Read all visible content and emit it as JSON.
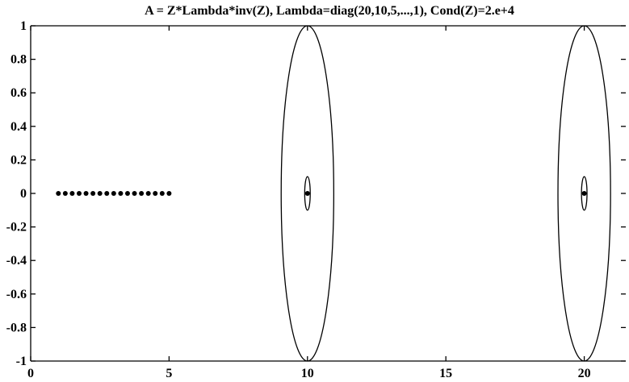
{
  "chart_data": {
    "type": "scatter",
    "title": "A = Z*Lambda*inv(Z), Lambda=diag(20,10,5,...,1), Cond(Z)=2.e+4",
    "xlabel": "",
    "ylabel": "",
    "xlim": [
      0,
      21.5
    ],
    "ylim": [
      -1,
      1
    ],
    "grid": false,
    "x_ticks": [
      {
        "value": 0,
        "label": "0"
      },
      {
        "value": 5,
        "label": "5"
      },
      {
        "value": 10,
        "label": "10"
      },
      {
        "value": 15,
        "label": "15"
      },
      {
        "value": 20,
        "label": "20"
      }
    ],
    "y_ticks": [
      {
        "value": 1,
        "label": "1"
      },
      {
        "value": 0.8,
        "label": "0.8"
      },
      {
        "value": 0.6,
        "label": "0.6"
      },
      {
        "value": 0.4,
        "label": "0.4"
      },
      {
        "value": 0.2,
        "label": "0.2"
      },
      {
        "value": 0,
        "label": "0"
      },
      {
        "value": -0.2,
        "label": "-0.2"
      },
      {
        "value": -0.4,
        "label": "-0.4"
      },
      {
        "value": -0.6,
        "label": "-0.6"
      },
      {
        "value": -0.8,
        "label": "-0.8"
      },
      {
        "value": -1,
        "label": "-1"
      }
    ],
    "points": [
      {
        "x": 1.0,
        "y": 0
      },
      {
        "x": 1.25,
        "y": 0
      },
      {
        "x": 1.5,
        "y": 0
      },
      {
        "x": 1.75,
        "y": 0
      },
      {
        "x": 2.0,
        "y": 0
      },
      {
        "x": 2.25,
        "y": 0
      },
      {
        "x": 2.5,
        "y": 0
      },
      {
        "x": 2.75,
        "y": 0
      },
      {
        "x": 3.0,
        "y": 0
      },
      {
        "x": 3.25,
        "y": 0
      },
      {
        "x": 3.5,
        "y": 0
      },
      {
        "x": 3.75,
        "y": 0
      },
      {
        "x": 4.0,
        "y": 0
      },
      {
        "x": 4.25,
        "y": 0
      },
      {
        "x": 4.5,
        "y": 0
      },
      {
        "x": 4.75,
        "y": 0
      },
      {
        "x": 5.0,
        "y": 0
      },
      {
        "x": 10.0,
        "y": 0
      },
      {
        "x": 20.0,
        "y": 0
      }
    ],
    "ellipses": [
      {
        "cx": 10,
        "cy": 0,
        "rx": 0.95,
        "ry": 1.0
      },
      {
        "cx": 10,
        "cy": 0,
        "rx": 0.1,
        "ry": 0.1
      },
      {
        "cx": 20,
        "cy": 0,
        "rx": 0.95,
        "ry": 1.0
      },
      {
        "cx": 20,
        "cy": 0,
        "rx": 0.1,
        "ry": 0.1
      }
    ]
  }
}
